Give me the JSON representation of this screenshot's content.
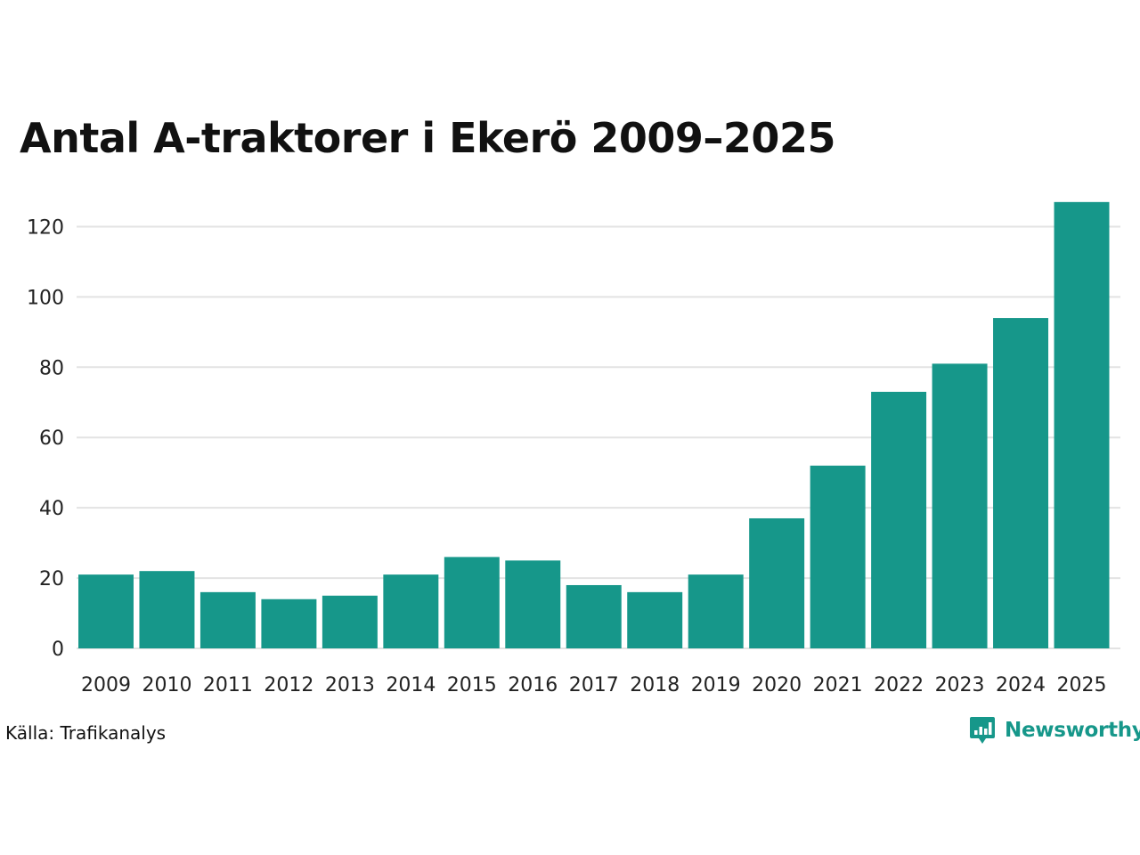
{
  "chart_data": {
    "type": "bar",
    "title": "Antal A-traktorer i Ekerö 2009–2025",
    "xlabel": "",
    "ylabel": "",
    "categories": [
      "2009",
      "2010",
      "2011",
      "2012",
      "2013",
      "2014",
      "2015",
      "2016",
      "2017",
      "2018",
      "2019",
      "2020",
      "2021",
      "2022",
      "2023",
      "2024",
      "2025"
    ],
    "values": [
      21,
      22,
      16,
      14,
      15,
      21,
      26,
      25,
      18,
      16,
      21,
      37,
      52,
      73,
      81,
      94,
      127
    ],
    "ylim": [
      0,
      130
    ],
    "yticks": [
      0,
      20,
      40,
      60,
      80,
      100,
      120
    ],
    "grid": true,
    "legend": "none",
    "colors": {
      "bar": "#16978a",
      "grid": "#e3e3e3",
      "brand": "#16978a"
    }
  },
  "source": "Källa: Trafikanalys",
  "brand": {
    "name": "Newsworthy",
    "icon": "bar-chart-speech-bubble-icon"
  }
}
